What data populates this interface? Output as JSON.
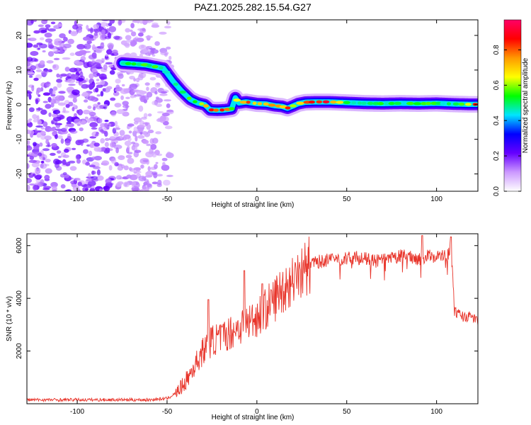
{
  "chart_data": [
    {
      "type": "heatmap",
      "title": "PAZ1.2025.282.15.54.G27",
      "xlabel": "Height of straight line (km)",
      "ylabel": "Frequency (Hz)",
      "xlim": [
        -128,
        123
      ],
      "ylim": [
        -25,
        24.5
      ],
      "x_ticks": [
        -100,
        -50,
        0,
        50,
        100
      ],
      "x_tick_labels": [
        "-100",
        "-50",
        "0",
        "50",
        "100"
      ],
      "y_ticks": [
        -20,
        -10,
        0,
        10,
        20
      ],
      "y_tick_labels": [
        "-20",
        "-10",
        "0",
        "10",
        "20"
      ],
      "colorbar": {
        "label": "Normalized spectral amplitude",
        "range": [
          0,
          0.97
        ],
        "ticks": [
          0,
          0.2,
          0.4,
          0.6,
          0.8
        ],
        "tick_labels": [
          "0.0",
          "0.2",
          "0.4",
          "0.6",
          "0.8"
        ],
        "colors": [
          "#ffffff",
          "#cc99ff",
          "#6600ff",
          "#0000ff",
          "#00e5ff",
          "#00ff00",
          "#ffff00",
          "#ff9900",
          "#ff0000",
          "#ff0066"
        ]
      },
      "ridge": {
        "x": [
          -75,
          -62,
          -52,
          -47,
          -42,
          -37,
          -33,
          -29,
          -26,
          -22,
          -18,
          -14,
          -12,
          -10,
          -6,
          0,
          5,
          10,
          14,
          17,
          20,
          23,
          27,
          33,
          40,
          50,
          60,
          70,
          80,
          90,
          100,
          110,
          118,
          123
        ],
        "y": [
          12,
          11.5,
          10.5,
          7,
          4,
          1.5,
          0.5,
          0,
          -1.5,
          -1.6,
          -1.5,
          -1.2,
          2,
          0.5,
          0.8,
          0.3,
          0.2,
          -0.3,
          -0.5,
          -1,
          -0.4,
          0.3,
          0.7,
          0.8,
          0.8,
          0.6,
          0.4,
          0.3,
          0.4,
          0.3,
          0.4,
          0.2,
          0.1,
          0.1
        ],
        "peak_amplitude": [
          0.55,
          0.6,
          0.6,
          0.5,
          0.55,
          0.6,
          0.7,
          0.7,
          0.9,
          0.95,
          0.9,
          0.7,
          0.6,
          0.75,
          0.9,
          0.85,
          0.9,
          0.8,
          0.75,
          0.85,
          0.7,
          0.8,
          0.9,
          0.95,
          0.95,
          0.6,
          0.55,
          0.6,
          0.55,
          0.6,
          0.55,
          0.55,
          0.8,
          0.95
        ]
      },
      "noise_region_x": [
        -128,
        -50
      ]
    },
    {
      "type": "line",
      "series_name": "SNR",
      "color": "#e8342a",
      "xlabel": "Height of straight line (km)",
      "ylabel": "SNR (10 * v/v)",
      "xlim": [
        -128,
        123
      ],
      "ylim": [
        0,
        6450
      ],
      "x_ticks": [
        -100,
        -50,
        0,
        50,
        100
      ],
      "x_tick_labels": [
        "-100",
        "-50",
        "0",
        "50",
        "100"
      ],
      "y_ticks": [
        2000,
        4000,
        6000
      ],
      "y_tick_labels": [
        "2000",
        "4000",
        "6000"
      ],
      "trend": {
        "x": [
          -128,
          -60,
          -50,
          -45,
          -40,
          -35,
          -30,
          -25,
          -20,
          -15,
          -10,
          -5,
          0,
          5,
          10,
          15,
          20,
          25,
          30,
          35,
          40,
          45,
          50,
          55,
          60,
          65,
          70,
          75,
          80,
          85,
          90,
          95,
          100,
          105,
          107,
          108,
          110,
          115,
          120,
          123
        ],
        "y": [
          150,
          150,
          200,
          400,
          800,
          1400,
          2000,
          2400,
          2500,
          2700,
          2900,
          3100,
          3300,
          3600,
          4000,
          4400,
          4700,
          5000,
          5300,
          5400,
          5450,
          5500,
          5500,
          5550,
          5500,
          5400,
          5450,
          5500,
          5600,
          5600,
          5500,
          5600,
          5600,
          5600,
          5700,
          6000,
          3500,
          3300,
          3300,
          3100
        ]
      },
      "spikes": [
        {
          "x": -27,
          "y": 3950
        },
        {
          "x": -7,
          "y": 5050
        },
        {
          "x": 3,
          "y": 4550
        },
        {
          "x": 92,
          "y": 6380
        },
        {
          "x": 108,
          "y": 6330
        }
      ]
    }
  ]
}
